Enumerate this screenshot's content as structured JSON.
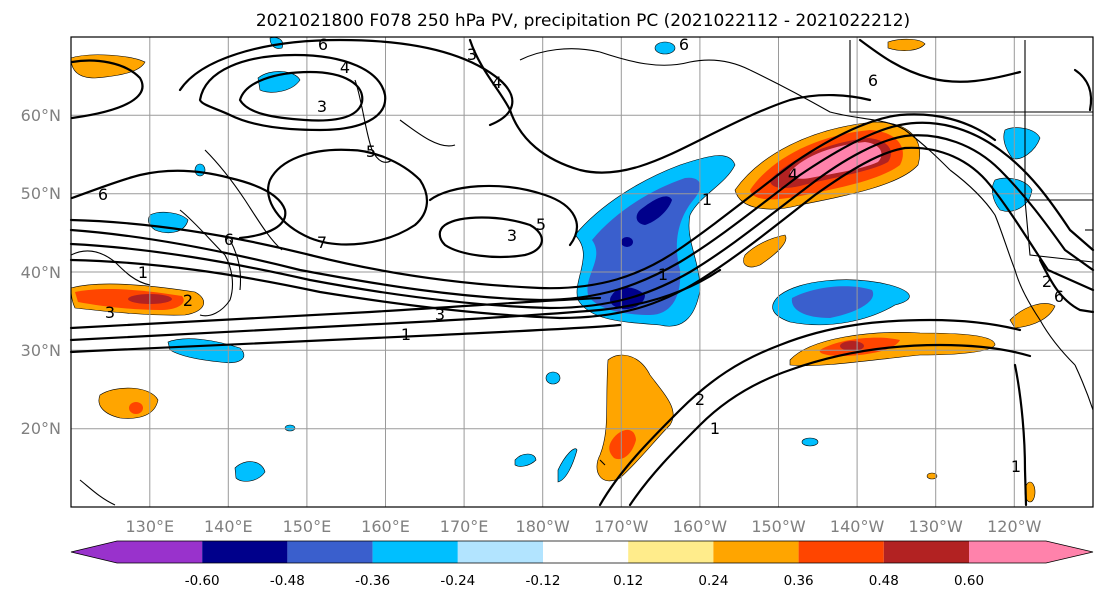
{
  "title": "2021021800 F078 250 hPa PV, precipitation PC (2021022112 - 2021022212)",
  "map": {
    "lon_ticks": [
      "130°E",
      "140°E",
      "150°E",
      "160°E",
      "170°E",
      "180°W",
      "170°W",
      "160°W",
      "150°W",
      "140°W",
      "130°W",
      "120°W"
    ],
    "lat_ticks": [
      "60°N",
      "50°N",
      "40°N",
      "30°N",
      "20°N"
    ],
    "pv_contour_labels": [
      "6",
      "3",
      "6",
      "4",
      "4",
      "3",
      "5",
      "6",
      "1",
      "6",
      "7",
      "3",
      "5",
      "4",
      "1",
      "6",
      "2",
      "3",
      "3",
      "1",
      "1",
      "2",
      "1",
      "6",
      "2",
      "1"
    ]
  },
  "colorbar": {
    "colors": [
      "#9932cc",
      "#00008b",
      "#3a5fcd",
      "#00bfff",
      "#b2e4ff",
      "#ffffff",
      "#ffec8b",
      "#ffa500",
      "#ff4500",
      "#b22222",
      "#ff82ab"
    ],
    "tick_labels": [
      "-0.60",
      "-0.48",
      "-0.36",
      "-0.24",
      "-0.12",
      "0.12",
      "0.24",
      "0.36",
      "0.48",
      "0.60"
    ]
  },
  "fills": {
    "dark_blue": "#00008b",
    "mid_blue": "#3a5fcd",
    "light_blue": "#00bfff",
    "orange": "#ffa500",
    "red_orange": "#ff4500",
    "dark_red": "#b22222",
    "pink": "#ff82ab"
  }
}
